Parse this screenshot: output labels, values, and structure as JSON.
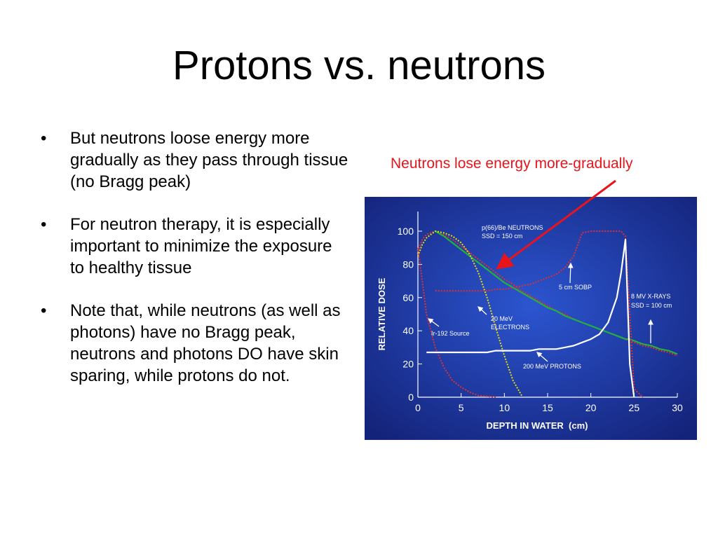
{
  "title": "Protons vs. neutrons",
  "bullets": [
    "But neutrons loose energy more gradually as they pass through tissue (no Bragg peak)",
    "For neutron therapy, it is especially important to minimize the exposure to healthy tissue",
    "Note that, while neutrons (as well as photons) have no Bragg peak, neutrons and photons DO have skin sparing, while protons do not."
  ],
  "callout": "Neutrons lose energy more-gradually",
  "chart_data": {
    "type": "line",
    "xlabel": "DEPTH IN WATER  (cm)",
    "ylabel": "RELATIVE DOSE",
    "xlim": [
      0,
      30
    ],
    "ylim": [
      0,
      100
    ],
    "xticks": [
      0,
      5,
      10,
      15,
      20,
      25,
      30
    ],
    "yticks": [
      0,
      20,
      40,
      60,
      80,
      100
    ],
    "x": [
      0,
      0.5,
      1,
      2,
      3,
      4,
      5,
      6,
      7,
      8,
      9,
      10,
      11,
      12,
      13,
      14,
      15,
      16,
      17,
      18,
      19,
      20,
      21,
      22,
      23,
      23.5,
      24,
      24.5,
      25,
      26,
      27,
      28,
      29,
      30
    ],
    "series": [
      {
        "color": "#e03030",
        "style": "dotted",
        "values": [
          88,
          95,
          98,
          100,
          98,
          95,
          91,
          87,
          83,
          79,
          75,
          71,
          68,
          64,
          61,
          58,
          55,
          52,
          50,
          47,
          45,
          43,
          41,
          39,
          37,
          36,
          35,
          34,
          33,
          31,
          30,
          28,
          27,
          25
        ]
      },
      {
        "color": "#22b040",
        "style": "solid",
        "values": [
          null,
          null,
          null,
          100,
          97,
          93,
          89,
          85,
          81,
          77,
          73,
          69,
          66,
          63,
          60,
          57,
          54,
          52,
          49,
          47,
          45,
          43,
          41,
          39,
          37,
          36,
          35,
          35,
          34,
          32,
          31,
          29,
          28,
          26
        ]
      },
      {
        "color": "#e8e000",
        "style": "dotted",
        "values": [
          85,
          92,
          96,
          100,
          99,
          97,
          93,
          86,
          75,
          60,
          42,
          25,
          10,
          1,
          null,
          null,
          null,
          null,
          null,
          null,
          null,
          null,
          null,
          null,
          null,
          null,
          null,
          null,
          null,
          null,
          null,
          null,
          null,
          null
        ]
      },
      {
        "color": "#e03030",
        "style": "dotted",
        "values": [
          90,
          70,
          50,
          30,
          18,
          10,
          6,
          3,
          1,
          0.5,
          0,
          null,
          null,
          null,
          null,
          null,
          null,
          null,
          null,
          null,
          null,
          null,
          null,
          null,
          null,
          null,
          null,
          null,
          null,
          null,
          null,
          null,
          null,
          null
        ]
      },
      {
        "color": "#e03030",
        "style": "dotted",
        "values": [
          null,
          null,
          null,
          64,
          64,
          64,
          64,
          64,
          64,
          64,
          65,
          65,
          66,
          67,
          68,
          70,
          72,
          74,
          78,
          85,
          99,
          100,
          100,
          100,
          100,
          100,
          97,
          50,
          5,
          0,
          null,
          null,
          null,
          null
        ]
      },
      {
        "color": "#ffffff",
        "style": "solid",
        "values": [
          null,
          null,
          27,
          27,
          27,
          27,
          27,
          27,
          27,
          27,
          28,
          28,
          28,
          28,
          28,
          29,
          29,
          29,
          30,
          31,
          33,
          35,
          38,
          45,
          60,
          75,
          95,
          20,
          0,
          null,
          null,
          null,
          null,
          null
        ]
      }
    ],
    "annotations": [
      "p(66)/Be NEUTRONS",
      "SSD = 150 cm",
      "5 cm SOBP",
      "8 MV X-RAYS",
      "SSD = 100 cm",
      "20 MeV",
      "ELECTRONS",
      "Ir-192 Source",
      "200 MeV PROTONS"
    ]
  }
}
